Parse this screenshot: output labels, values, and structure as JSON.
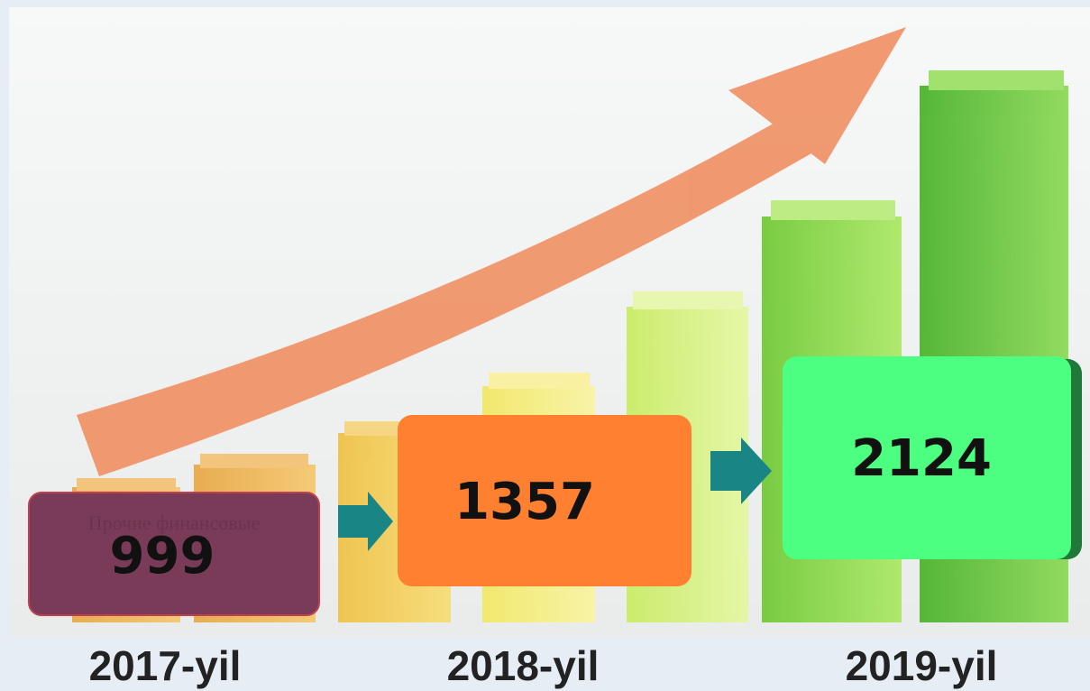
{
  "items": [
    {
      "value": "999",
      "year": "2017-yil",
      "note": "Прочие финансовые"
    },
    {
      "value": "1357",
      "year": "2018-yil"
    },
    {
      "value": "2124",
      "year": "2019-yil"
    }
  ]
}
